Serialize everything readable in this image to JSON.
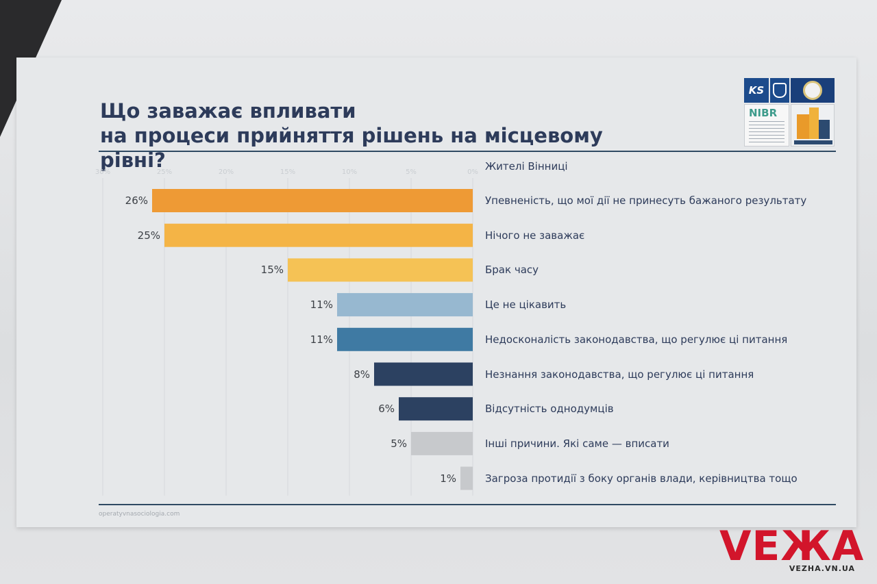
{
  "slide": {
    "title_line1": "Що заважає впливати",
    "title_line2": "на процеси прийняття рішень на місцевому рівні?",
    "footer_url": "operatyvnasociologia.com",
    "logos": {
      "ks_text": "KS",
      "nibr_text": "NIBR"
    }
  },
  "chart_data": {
    "type": "bar",
    "orientation": "horizontal",
    "direction": "right-to-left",
    "legend": "Жителі Вінниці",
    "categories": [
      "Упевненість, що мої дії не принесуть бажаного результату",
      "Нічого не заважає",
      "Брак часу",
      "Це не цікавить",
      "Недосконалість законодавства, що регулює ці питання",
      "Незнання законодавства, що регулює ці питання",
      "Відсутність однодумців",
      "Інші причини. Які саме — вписати",
      "Загроза протидії з боку органів влади, керівництва тощо"
    ],
    "values": [
      26,
      25,
      15,
      11,
      11,
      8,
      6,
      5,
      1
    ],
    "value_labels": [
      "26%",
      "25%",
      "15%",
      "11%",
      "11%",
      "8%",
      "6%",
      "5%",
      "1%"
    ],
    "colors": [
      "#ee9a35",
      "#f4b446",
      "#f5c255",
      "#97b8d0",
      "#3f7aa3",
      "#2c4161",
      "#2c4161",
      "#c7c9cc",
      "#c7c9cc"
    ],
    "xlim": [
      0,
      30
    ],
    "ticks": [
      30,
      25,
      20,
      15,
      10,
      5,
      0
    ],
    "tick_labels": [
      "30%",
      "25%",
      "20%",
      "15%",
      "10%",
      "5%",
      "0%"
    ],
    "grid": true
  },
  "watermark": {
    "brand": "VEЖA",
    "url": "VEZHA.VN.UA"
  }
}
